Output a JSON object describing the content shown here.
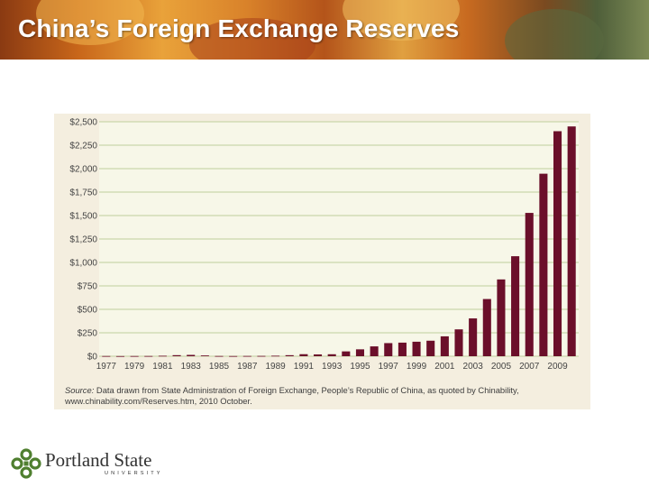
{
  "slide": {
    "title": "China’s Foreign Exchange Reserves"
  },
  "source": {
    "label": "Source:",
    "line1_rest": "Data drawn from State Administration of Foreign Exchange, People’s Republic of China, as quoted by Chinability,",
    "line2": "www.chinability.com/Reserves.htm, 2010 October."
  },
  "logo": {
    "name": "Portland State",
    "sub": "UNIVERSITY",
    "icon": "portland-state-logo-mark"
  },
  "colors": {
    "bar": "#6b0f2a",
    "panel": "#f4eedf",
    "plot_bg": "#f7f7e8",
    "grid": "#bfcf9c"
  },
  "chart_data": {
    "type": "bar",
    "x": [
      1977,
      1978,
      1979,
      1980,
      1981,
      1982,
      1983,
      1984,
      1985,
      1986,
      1987,
      1988,
      1989,
      1990,
      1991,
      1992,
      1993,
      1994,
      1995,
      1996,
      1997,
      1998,
      1999,
      2000,
      2001,
      2002,
      2003,
      2004,
      2005,
      2006,
      2007,
      2008,
      2009,
      2010
    ],
    "values": [
      2.3,
      1.6,
      2.2,
      2.5,
      5.1,
      11.3,
      14.3,
      8.2,
      2.6,
      2.1,
      2.9,
      3.4,
      5.6,
      11.1,
      21.7,
      19.4,
      21.2,
      51.6,
      73.6,
      105.0,
      139.9,
      145.0,
      154.7,
      165.6,
      212.2,
      286.4,
      403.3,
      609.9,
      818.9,
      1066.3,
      1528.2,
      1946.0,
      2399.2,
      2450.0
    ],
    "x_tick_labels": [
      "1977",
      "1979",
      "1981",
      "1983",
      "1985",
      "1987",
      "1989",
      "1991",
      "1993",
      "1995",
      "1997",
      "1999",
      "2001",
      "2003",
      "2005",
      "2007",
      "2009"
    ],
    "y_tick_labels": [
      "$0",
      "$250",
      "$500",
      "$750",
      "$1,000",
      "$1,250",
      "$1,500",
      "$1,750",
      "$2,000",
      "$2,250",
      "$2,500"
    ],
    "y_ticks": [
      0,
      250,
      500,
      750,
      1000,
      1250,
      1500,
      1750,
      2000,
      2250,
      2500
    ],
    "ylim": [
      0,
      2500
    ],
    "grid": true,
    "legend": "none"
  }
}
